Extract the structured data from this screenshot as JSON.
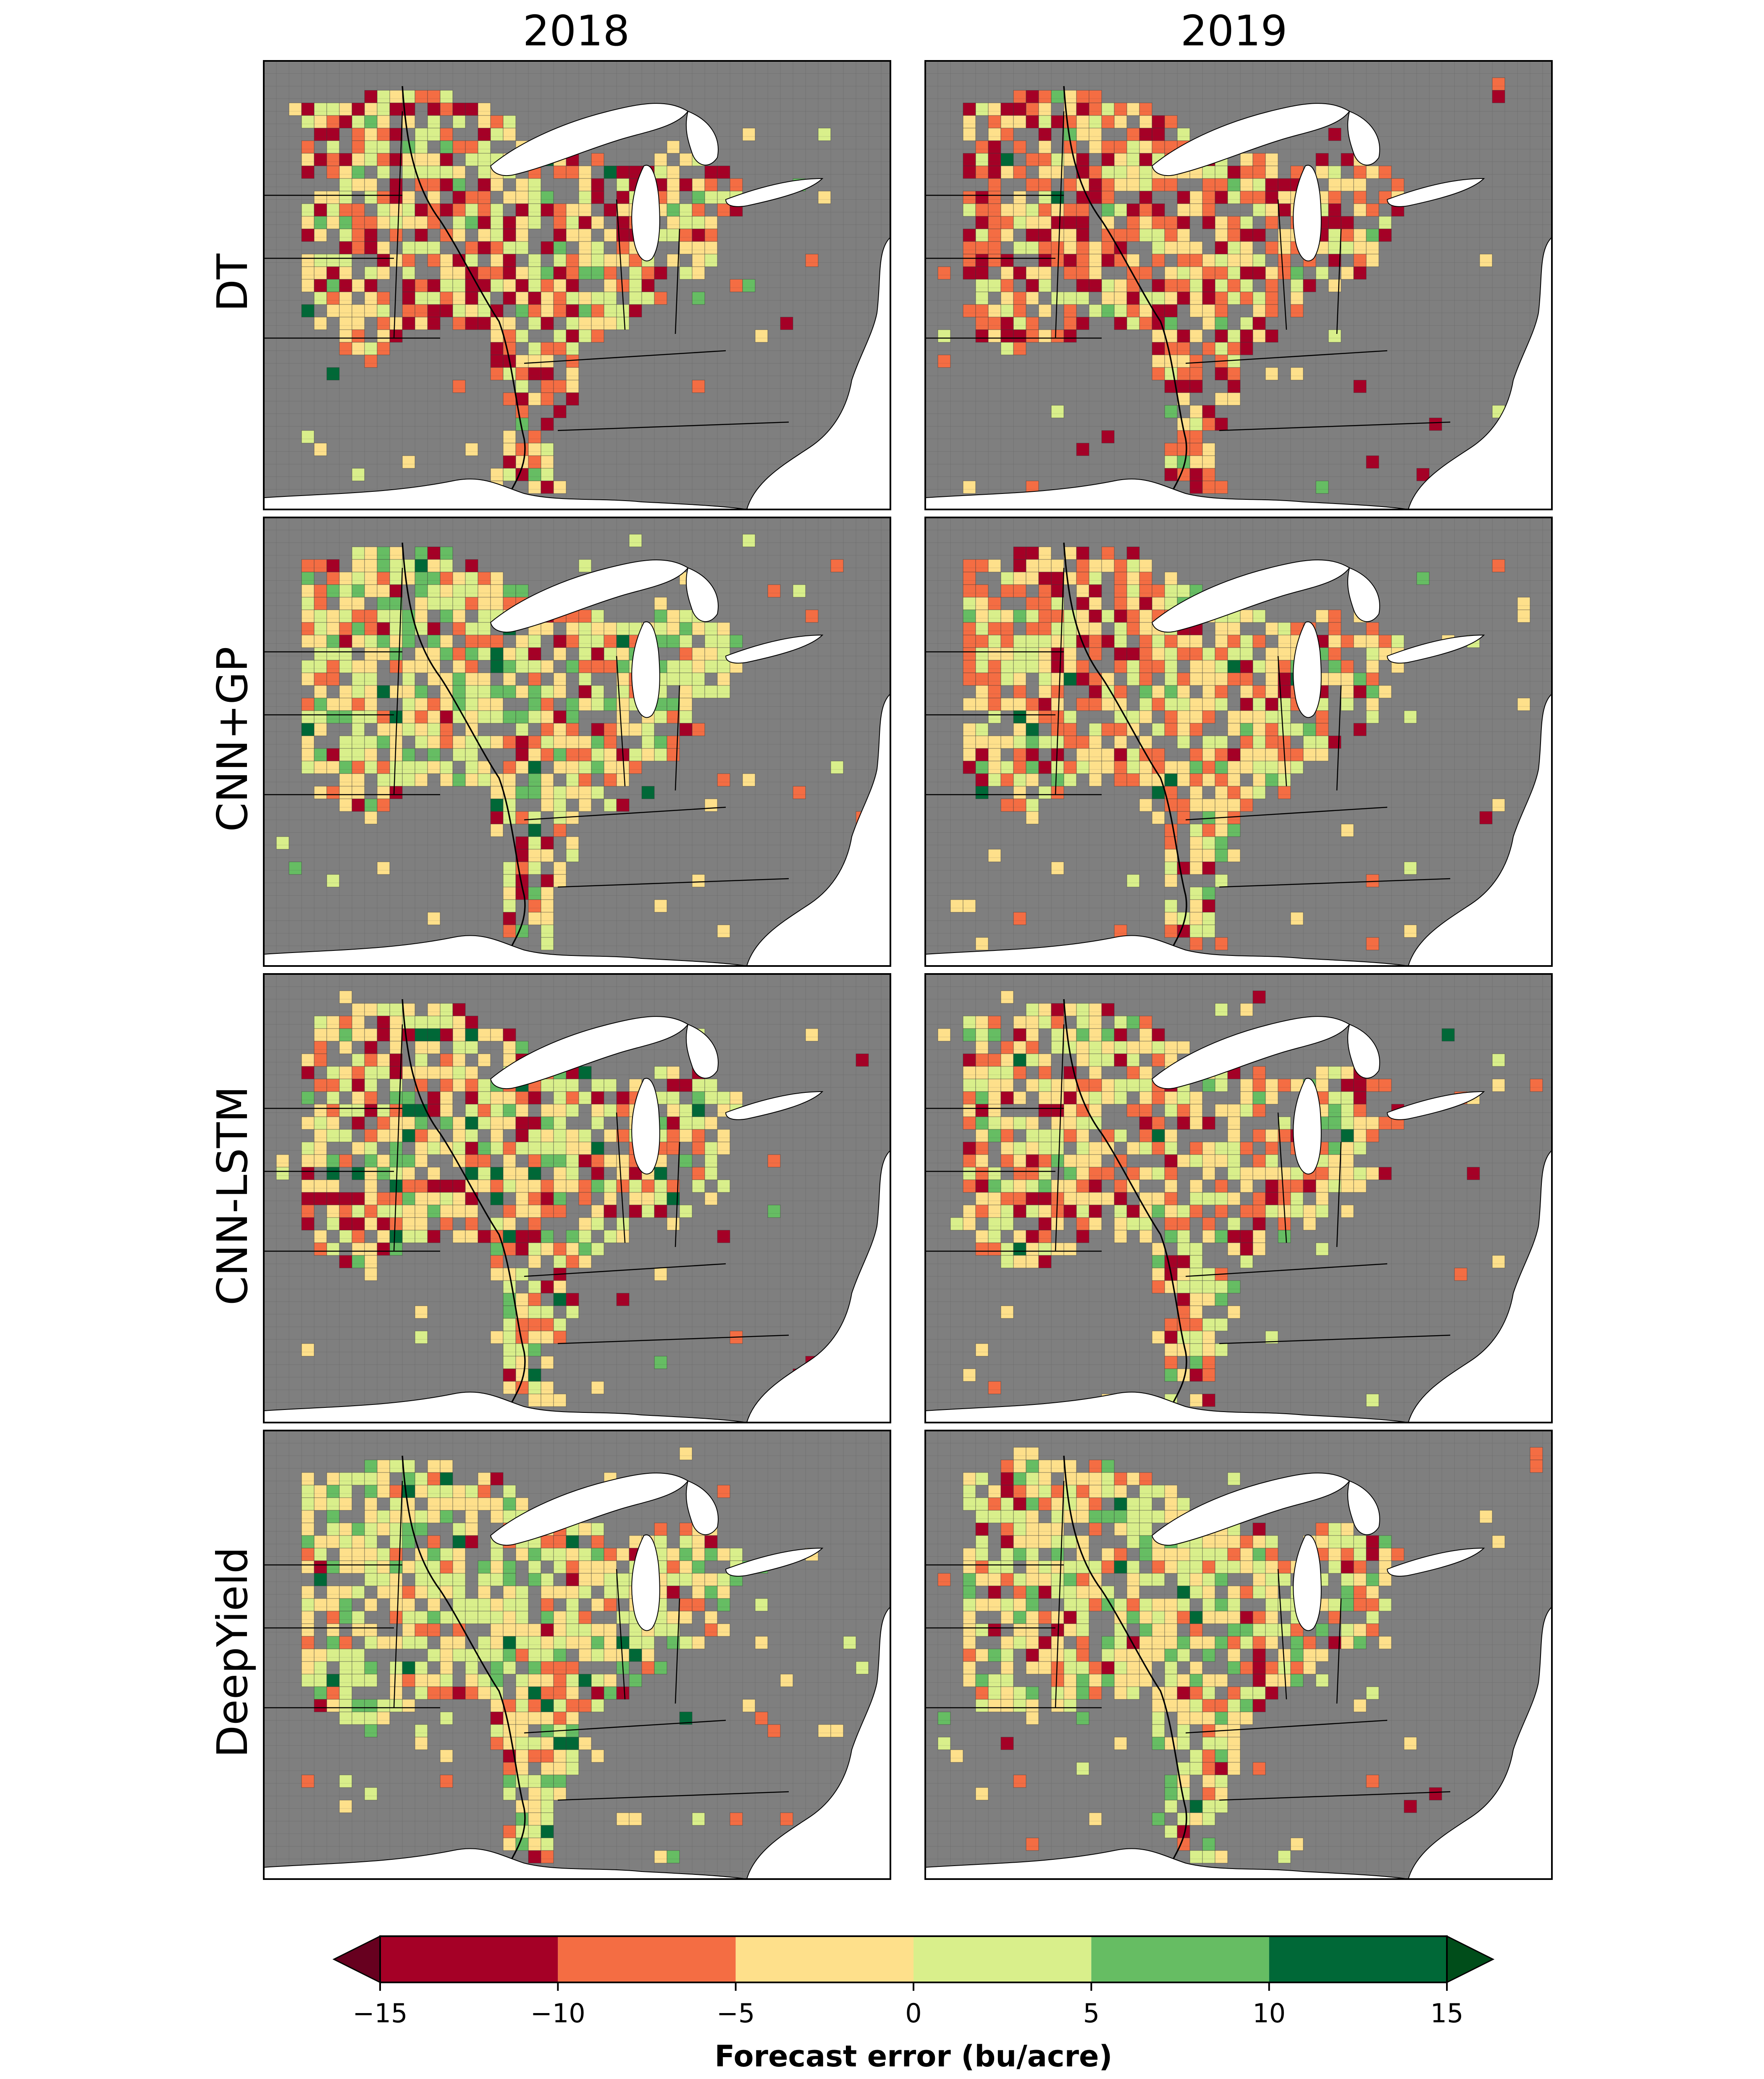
{
  "columns": [
    "2018",
    "2019"
  ],
  "rows": [
    "DT",
    "CNN+GP",
    "CNN-LSTM",
    "DeepYield"
  ],
  "colorbar": {
    "label": "Forecast error (bu/acre)",
    "ticks": [
      "−15",
      "−10",
      "−5",
      "0",
      "5",
      "10",
      "15"
    ],
    "bins": [
      {
        "from": -15,
        "to": -10,
        "color": "#a50026"
      },
      {
        "from": -10,
        "to": -5,
        "color": "#f46d43"
      },
      {
        "from": -5,
        "to": 0,
        "color": "#fee08b"
      },
      {
        "from": 0,
        "to": 5,
        "color": "#d9ef8b"
      },
      {
        "from": 5,
        "to": 10,
        "color": "#66bd63"
      },
      {
        "from": 10,
        "to": 15,
        "color": "#006837"
      }
    ],
    "under_color": "#67001f",
    "over_color": "#004d1a"
  },
  "colors": {
    "land": "#7f7f7f",
    "water": "#ffffff",
    "county_line": "#3a3a3a",
    "state_line": "#000000",
    "frame": "#000000"
  },
  "panel_error_patterns": {
    "DT|2018": {
      "-15": 0.22,
      "-10": 0.2,
      "-5": 0.3,
      "0": 0.22,
      "5": 0.05,
      "10": 0.01
    },
    "DT|2019": {
      "-15": 0.24,
      "-10": 0.28,
      "-5": 0.28,
      "0": 0.16,
      "5": 0.03,
      "10": 0.01
    },
    "CNN+GP|2018": {
      "-15": 0.06,
      "-10": 0.16,
      "-5": 0.36,
      "0": 0.28,
      "5": 0.11,
      "10": 0.03
    },
    "CNN+GP|2019": {
      "-15": 0.12,
      "-10": 0.25,
      "-5": 0.35,
      "0": 0.22,
      "5": 0.05,
      "10": 0.01
    },
    "CNN-LSTM|2018": {
      "-15": 0.12,
      "-10": 0.16,
      "-5": 0.34,
      "0": 0.27,
      "5": 0.07,
      "10": 0.04
    },
    "CNN-LSTM|2019": {
      "-15": 0.12,
      "-10": 0.22,
      "-5": 0.34,
      "0": 0.26,
      "5": 0.05,
      "10": 0.01
    },
    "DeepYield|2018": {
      "-15": 0.03,
      "-10": 0.12,
      "-5": 0.34,
      "0": 0.33,
      "5": 0.15,
      "10": 0.03
    },
    "DeepYield|2019": {
      "-15": 0.05,
      "-10": 0.15,
      "-5": 0.36,
      "0": 0.3,
      "5": 0.12,
      "10": 0.02
    }
  }
}
